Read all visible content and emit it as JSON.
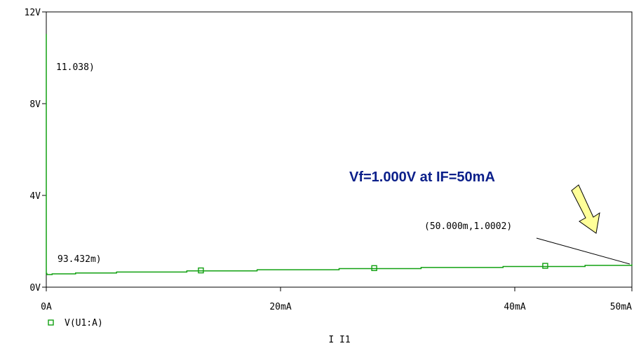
{
  "chart_data": {
    "type": "line",
    "x_tick_labels": [
      "0A",
      "20mA",
      "40mA",
      "50mA"
    ],
    "x_ticks": [
      0,
      0.02,
      0.04,
      0.05
    ],
    "y_tick_labels": [
      "0V",
      "4V",
      "8V",
      "12V"
    ],
    "y_ticks": [
      0,
      4,
      8,
      12
    ],
    "xlim": [
      0,
      0.05
    ],
    "ylim": [
      0,
      12
    ],
    "xlabel": "I I1",
    "ylabel": "",
    "grid": false,
    "legend_position": "bottom-left",
    "series": [
      {
        "name": "V(U1:A)",
        "color": "#10a010",
        "x": [
          0,
          1e-07,
          5e-07,
          1e-06,
          5e-05,
          0.0005,
          0.0025,
          0.006,
          0.012,
          0.018,
          0.025,
          0.032,
          0.039,
          0.046,
          0.05
        ],
        "y": [
          11.038,
          4.0,
          1.1,
          0.6,
          0.55,
          0.58,
          0.62,
          0.66,
          0.71,
          0.76,
          0.81,
          0.86,
          0.9,
          0.95,
          1.0002
        ],
        "marker_x": [
          0.0132,
          0.028,
          0.0426
        ],
        "marker_y": [
          0.73,
          0.83,
          0.93
        ]
      }
    ],
    "annotations": {
      "top_label": "11.038)",
      "bottom_label": "93.432m)",
      "end_label": "(50.000m,1.0002)",
      "headline": "Vf=1.000V at IF=50mA"
    }
  }
}
